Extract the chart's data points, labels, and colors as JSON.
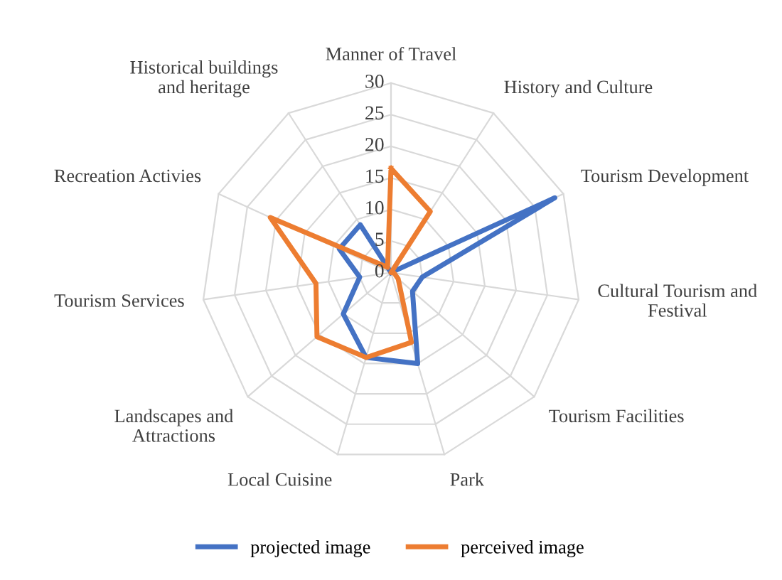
{
  "chart_data": {
    "type": "radar",
    "categories": [
      "Manner of Travel",
      "History and Culture",
      "Tourism Development",
      "Cultural Tourism and\nFestival",
      "Tourism Facilities",
      "Park",
      "Local Cuisine",
      "Landscapes and\nAttractions",
      "Tourism Services",
      "Recreation Activies",
      "Historical buildings\nand heritage"
    ],
    "series": [
      {
        "name": "projected image",
        "color": "#4472c4",
        "values": [
          0,
          0,
          28.5,
          5,
          4.5,
          15,
          14,
          10,
          5,
          9,
          9
        ]
      },
      {
        "name": "perceived image",
        "color": "#ed7d31",
        "values": [
          16.5,
          11.5,
          0,
          0.5,
          1.5,
          11.5,
          14,
          15.5,
          12,
          21,
          1
        ]
      }
    ],
    "ylim": [
      0,
      30
    ],
    "yticks": [
      0,
      5,
      10,
      15,
      20,
      25,
      30
    ],
    "grid": true,
    "legend": "bottom",
    "marker": "none",
    "line_style": "solid"
  }
}
